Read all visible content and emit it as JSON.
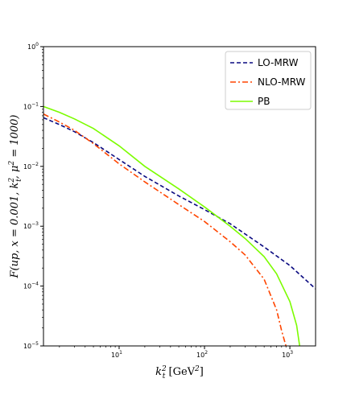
{
  "chart_data": {
    "type": "line",
    "title": "",
    "xlabel": "k_t^2 [GeV^2]",
    "ylabel": "F(up, x = 0.001, k_t^2, μ^2 = 1000)",
    "x_scale": "log",
    "y_scale": "log",
    "xlim": [
      1.3,
      2000
    ],
    "ylim": [
      1e-05,
      1
    ],
    "x_ticks": [
      {
        "value": 10,
        "base": "10",
        "exp": "1"
      },
      {
        "value": 100,
        "base": "10",
        "exp": "2"
      },
      {
        "value": 1000,
        "base": "10",
        "exp": "3"
      }
    ],
    "y_ticks": [
      {
        "value": 1e-05,
        "base": "10",
        "exp": "−5"
      },
      {
        "value": 0.0001,
        "base": "10",
        "exp": "−4"
      },
      {
        "value": 0.001,
        "base": "10",
        "exp": "−3"
      },
      {
        "value": 0.01,
        "base": "10",
        "exp": "−2"
      },
      {
        "value": 0.1,
        "base": "10",
        "exp": "−1"
      },
      {
        "value": 1,
        "base": "10",
        "exp": "0"
      }
    ],
    "grid": false,
    "legend_position": "top-right",
    "series": [
      {
        "name": "LO-MRW",
        "color": "#0a0a80",
        "style": "dashed",
        "x": [
          1.3,
          2,
          3,
          5,
          10,
          20,
          50,
          100,
          200,
          500,
          1000,
          2000
        ],
        "y": [
          0.065,
          0.05,
          0.038,
          0.025,
          0.013,
          0.0068,
          0.0032,
          0.0019,
          0.0011,
          0.00045,
          0.00022,
          9e-05
        ]
      },
      {
        "name": "NLO-MRW",
        "color": "#ff4500",
        "style": "dashdot",
        "x": [
          1.3,
          2,
          3,
          5,
          10,
          20,
          50,
          100,
          200,
          300,
          500,
          700,
          800,
          900
        ],
        "y": [
          0.075,
          0.055,
          0.04,
          0.024,
          0.011,
          0.0055,
          0.0023,
          0.0012,
          0.00055,
          0.00033,
          0.00013,
          4e-05,
          1.8e-05,
          1e-05
        ]
      },
      {
        "name": "PB",
        "color": "#7cfc00",
        "style": "solid",
        "x": [
          1.3,
          2,
          3,
          5,
          10,
          20,
          50,
          100,
          200,
          300,
          500,
          700,
          1000,
          1200,
          1300
        ],
        "y": [
          0.1,
          0.08,
          0.062,
          0.043,
          0.022,
          0.01,
          0.0042,
          0.0021,
          0.001,
          0.00062,
          0.00031,
          0.00016,
          5.5e-05,
          2.2e-05,
          1e-05
        ]
      }
    ]
  }
}
